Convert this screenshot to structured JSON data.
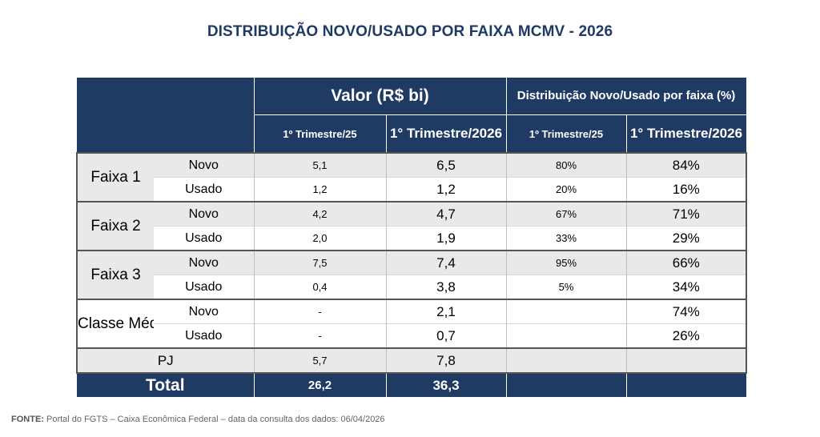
{
  "title": "DISTRIBUIÇÃO NOVO/USADO POR FAIXA MCMV - 2026",
  "header": {
    "valor": "Valor (R$ bi)",
    "distribuicao": "Distribuição Novo/Usado por faixa (%)",
    "sub": [
      "1º Trimestre/25",
      "1° Trimestre/2026",
      "1º Trimestre/25",
      "1° Trimestre/2026"
    ]
  },
  "rows": [
    {
      "group": "Faixa 1",
      "type": "Novo",
      "v25": "5,1",
      "v26": "6,5",
      "d25": "80%",
      "d26": "84%"
    },
    {
      "group": "Faixa 1",
      "type": "Usado",
      "v25": "1,2",
      "v26": "1,2",
      "d25": "20%",
      "d26": "16%"
    },
    {
      "group": "Faixa 2",
      "type": "Novo",
      "v25": "4,2",
      "v26": "4,7",
      "d25": "67%",
      "d26": "71%"
    },
    {
      "group": "Faixa 2",
      "type": "Usado",
      "v25": "2,0",
      "v26": "1,9",
      "d25": "33%",
      "d26": "29%"
    },
    {
      "group": "Faixa 3",
      "type": "Novo",
      "v25": "7,5",
      "v26": "7,4",
      "d25": "95%",
      "d26": "66%"
    },
    {
      "group": "Faixa 3",
      "type": "Usado",
      "v25": "0,4",
      "v26": "3,8",
      "d25": "5%",
      "d26": "34%"
    },
    {
      "group": "Classe Média",
      "type": "Novo",
      "v25": "-",
      "v26": "2,1",
      "d25": "",
      "d26": "74%"
    },
    {
      "group": "Classe Média",
      "type": "Usado",
      "v25": "-",
      "v26": "0,7",
      "d25": "",
      "d26": "26%"
    }
  ],
  "groups": [
    "Faixa 1",
    "Faixa 2",
    "Faixa 3",
    "Classe Média"
  ],
  "pj": {
    "label": "PJ",
    "v25": "5,7",
    "v26": "7,8",
    "d25": "",
    "d26": ""
  },
  "total": {
    "label": "Total",
    "v25": "26,2",
    "v26": "36,3",
    "d25": "",
    "d26": ""
  },
  "footer": {
    "label": "FONTE:",
    "text": " Portal do FGTS – Caixa Econômica Federal – data da consulta dos dados: 06/04/2026"
  },
  "colors": {
    "header": "#1f3a63",
    "row_grey": "#e9e9e9"
  }
}
